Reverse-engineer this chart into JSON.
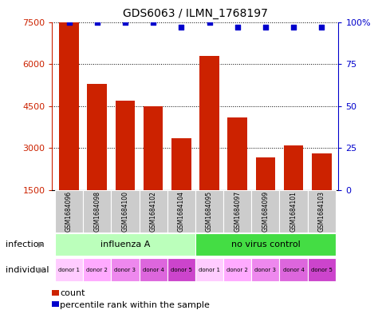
{
  "title": "GDS6063 / ILMN_1768197",
  "samples": [
    "GSM1684096",
    "GSM1684098",
    "GSM1684100",
    "GSM1684102",
    "GSM1684104",
    "GSM1684095",
    "GSM1684097",
    "GSM1684099",
    "GSM1684101",
    "GSM1684103"
  ],
  "counts": [
    7500,
    5300,
    4700,
    4500,
    3350,
    6300,
    4100,
    2650,
    3100,
    2800
  ],
  "percentile_ranks": [
    100,
    100,
    100,
    100,
    97,
    100,
    97,
    97,
    97,
    97
  ],
  "bar_color": "#cc2200",
  "dot_color": "#0000cc",
  "ylim_left": [
    1500,
    7500
  ],
  "ylim_right": [
    0,
    100
  ],
  "yticks_left": [
    1500,
    3000,
    4500,
    6000,
    7500
  ],
  "yticks_right": [
    0,
    25,
    50,
    75,
    100
  ],
  "infection_groups": [
    {
      "label": "influenza A",
      "start": 0,
      "end": 5,
      "color": "#bbffbb"
    },
    {
      "label": "no virus control",
      "start": 5,
      "end": 10,
      "color": "#44dd44"
    }
  ],
  "donors": [
    "donor 1",
    "donor 2",
    "donor 3",
    "donor 4",
    "donor 5",
    "donor 1",
    "donor 2",
    "donor 3",
    "donor 4",
    "donor 5"
  ],
  "donor_colors": [
    "#ffccff",
    "#ffaaff",
    "#ee88ee",
    "#dd66dd",
    "#cc44cc",
    "#ffccff",
    "#ffaaff",
    "#ee88ee",
    "#dd66dd",
    "#cc44cc"
  ],
  "infection_label": "infection",
  "individual_label": "individual",
  "legend_count_label": "count",
  "legend_percentile_label": "percentile rank within the sample",
  "background_color": "#ffffff",
  "grid_color": "#000000",
  "left_axis_color": "#cc2200",
  "right_axis_color": "#0000cc",
  "bar_width": 0.7
}
